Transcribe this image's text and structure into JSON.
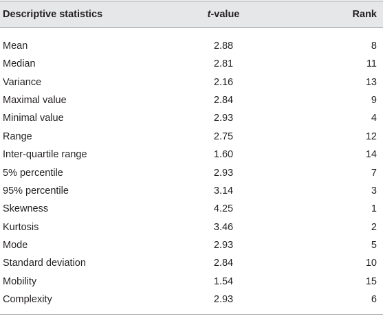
{
  "table": {
    "header": [
      "Descriptive statistics",
      [
        "t",
        "-value"
      ],
      "Rank"
    ],
    "rows": [
      [
        "Mean",
        "2.88",
        8
      ],
      [
        "Median",
        "2.81",
        11
      ],
      [
        "Variance",
        "2.16",
        13
      ],
      [
        "Maximal value",
        "2.84",
        9
      ],
      [
        "Minimal value",
        "2.93",
        4
      ],
      [
        "Range",
        "2.75",
        12
      ],
      [
        "Inter-quartile range",
        "1.60",
        14
      ],
      [
        "5% percentile",
        "2.93",
        7
      ],
      [
        "95% percentile",
        "3.14",
        3
      ],
      [
        "Skewness",
        "4.25",
        1
      ],
      [
        "Kurtosis",
        "3.46",
        2
      ],
      [
        "Mode",
        "2.93",
        5
      ],
      [
        "Standard deviation",
        "2.84",
        10
      ],
      [
        "Mobility",
        "1.54",
        15
      ],
      [
        "Complexity",
        "2.93",
        6
      ]
    ]
  }
}
